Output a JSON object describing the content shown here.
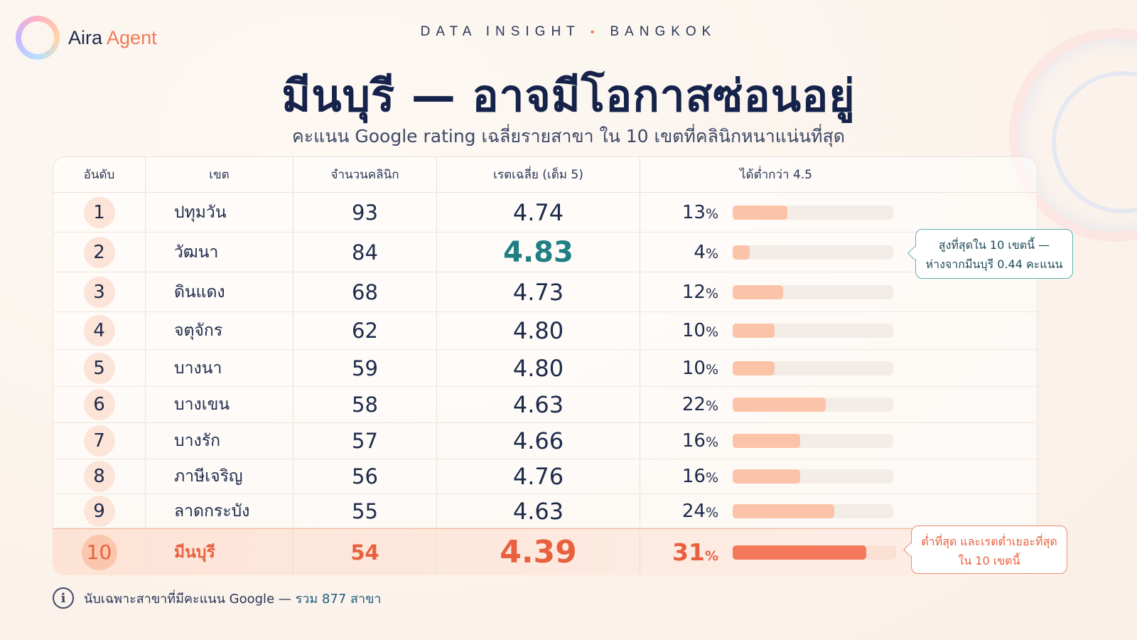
{
  "brand": {
    "name_a": "Aira",
    "name_b": " Agent"
  },
  "kicker": {
    "left": "DATA INSIGHT",
    "dot": "•",
    "right": "BANGKOK"
  },
  "title": "มีนบุรี — อาจมีโอกาสซ่อนอยู่",
  "subtitle": "คะแนน Google rating เฉลี่ยรายสาขา ใน 10 เขตที่คลินิกหนาแน่นที่สุด",
  "colors": {
    "accent": "#f07a58",
    "best": "#1f7f82",
    "bar": "#fbc4a8",
    "bar_highlight": "#f4785a"
  },
  "table": {
    "headers": {
      "rank": "อันดับ",
      "district": "เขต",
      "count": "จำนวนคลินิก",
      "rating": "เรตเฉลี่ย (เต็ม 5)",
      "below": "ได้ต่ำกว่า 4.5"
    },
    "rows": [
      {
        "rank": "1",
        "district": "ปทุมวัน",
        "count": "93",
        "rating": "4.74",
        "below": "13",
        "below_pct": 13
      },
      {
        "rank": "2",
        "district": "วัฒนา",
        "count": "84",
        "rating": "4.83",
        "below": "4",
        "below_pct": 4
      },
      {
        "rank": "3",
        "district": "ดินแดง",
        "count": "68",
        "rating": "4.73",
        "below": "12",
        "below_pct": 12
      },
      {
        "rank": "4",
        "district": "จตุจักร",
        "count": "62",
        "rating": "4.80",
        "below": "10",
        "below_pct": 10
      },
      {
        "rank": "5",
        "district": "บางนา",
        "count": "59",
        "rating": "4.80",
        "below": "10",
        "below_pct": 10
      },
      {
        "rank": "6",
        "district": "บางเขน",
        "count": "58",
        "rating": "4.63",
        "below": "22",
        "below_pct": 22
      },
      {
        "rank": "7",
        "district": "บางรัก",
        "count": "57",
        "rating": "4.66",
        "below": "16",
        "below_pct": 16
      },
      {
        "rank": "8",
        "district": "ภาษีเจริญ",
        "count": "56",
        "rating": "4.76",
        "below": "16",
        "below_pct": 16
      },
      {
        "rank": "9",
        "district": "ลาดกระบัง",
        "count": "55",
        "rating": "4.63",
        "below": "24",
        "below_pct": 24
      },
      {
        "rank": "10",
        "district": "มีนบุรี",
        "count": "54",
        "rating": "4.39",
        "below": "31",
        "below_pct": 31
      }
    ],
    "pct_symbol": "%"
  },
  "callouts": {
    "best": {
      "line1": "สูงที่สุดใน 10 เขตนี้ —",
      "line2": "ห่างจากมีนบุรี 0.44 คะแนน"
    },
    "worst": {
      "line1": "ต่ำที่สุด และเรตต่ำเยอะที่สุด",
      "line2": "ใน 10 เขตนี้"
    }
  },
  "footer": {
    "info_glyph": "i",
    "note": "นับเฉพาะสาขาที่มีคะแนน Google —",
    "total": "รวม 877 สาขา"
  }
}
